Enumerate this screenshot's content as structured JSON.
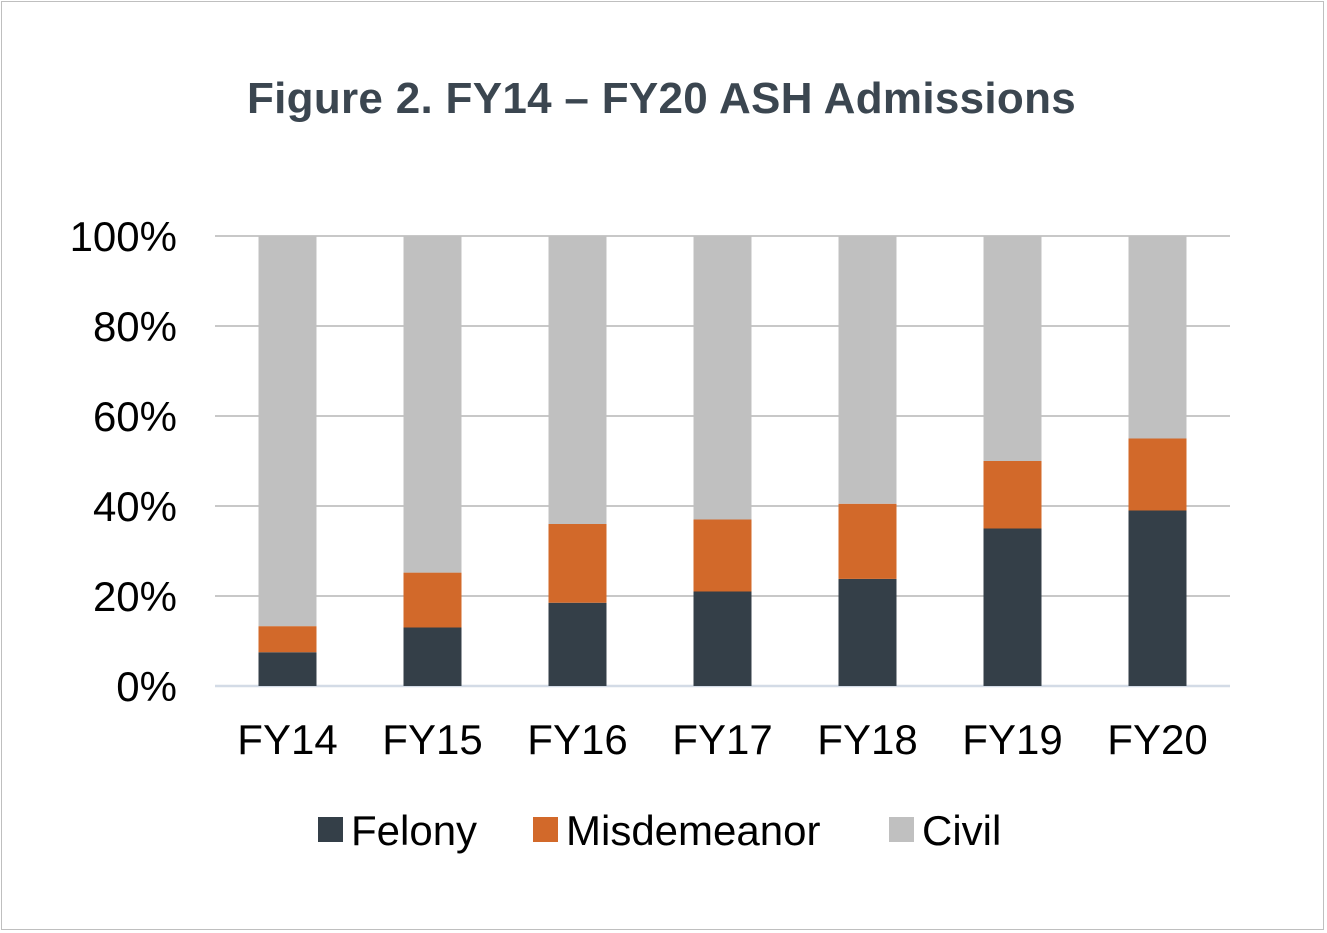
{
  "chart_data": {
    "type": "bar",
    "stacked": true,
    "title": "Figure 2. FY14 – FY20 ASH Admissions",
    "categories": [
      "FY14",
      "FY15",
      "FY16",
      "FY17",
      "FY18",
      "FY19",
      "FY20"
    ],
    "series": [
      {
        "name": "Felony",
        "color": "#343f48",
        "values": [
          7.5,
          13,
          18.5,
          21,
          23.8,
          35,
          39
        ]
      },
      {
        "name": "Misdemeanor",
        "color": "#d2692a",
        "values": [
          5.8,
          12.2,
          17.5,
          16,
          16.7,
          15,
          16
        ]
      },
      {
        "name": "Civil",
        "color": "#c0c0c0",
        "values": [
          86.7,
          74.8,
          64,
          63,
          59.5,
          50,
          45
        ]
      }
    ],
    "ylim": [
      0,
      100
    ],
    "yticks": [
      "0%",
      "20%",
      "40%",
      "60%",
      "80%",
      "100%"
    ],
    "ytick_values": [
      0,
      20,
      40,
      60,
      80,
      100
    ],
    "grid": true,
    "legend_position": "bottom"
  }
}
